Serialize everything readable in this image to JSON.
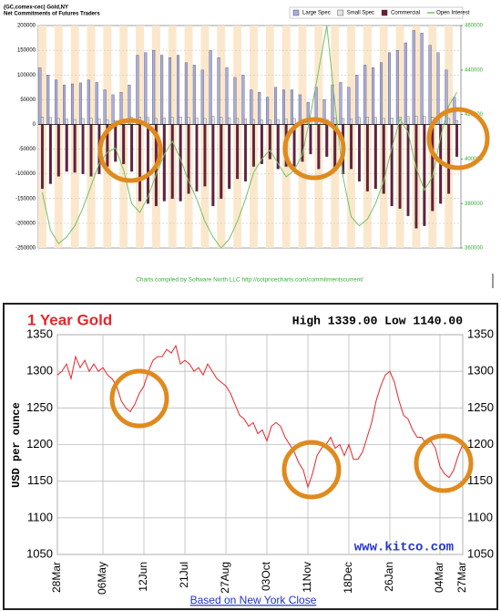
{
  "chart_data": [
    {
      "type": "bar",
      "title": "(GC,comex-cec) Gold,NY",
      "subtitle": "Net Commitments of Futures Traders",
      "source": "Charts compiled by Software North LLC  http://cotpricecharts.com/commitmentscurrent/",
      "categories": [
        null,
        null,
        null,
        null,
        null,
        null,
        null,
        null,
        null,
        null,
        null,
        null,
        null,
        null,
        null,
        null,
        null,
        null,
        null,
        null,
        null,
        null,
        null,
        null,
        null,
        null,
        null,
        null,
        null,
        null,
        null,
        null,
        null,
        null,
        null,
        null,
        null,
        null,
        null,
        null,
        null,
        null,
        null,
        null,
        null,
        null,
        null,
        null,
        null,
        null,
        null,
        null
      ],
      "series": [
        {
          "name": "Large Spec",
          "color": "#a9ace0",
          "values": [
            115000,
            100000,
            90000,
            80000,
            82000,
            84000,
            90000,
            85000,
            70000,
            60000,
            65000,
            80000,
            140000,
            145000,
            150000,
            140000,
            135000,
            140000,
            125000,
            120000,
            110000,
            150000,
            135000,
            115000,
            95000,
            100000,
            70000,
            65000,
            55000,
            75000,
            70000,
            70000,
            60000,
            45000,
            75000,
            50000,
            80000,
            85000,
            75000,
            100000,
            120000,
            115000,
            125000,
            145000,
            150000,
            165000,
            190000,
            185000,
            160000,
            145000,
            110000,
            55000
          ]
        },
        {
          "name": "Small Spec",
          "color": "#e4e4ea",
          "values": [
            15000,
            14000,
            12000,
            11000,
            10000,
            12000,
            13000,
            11000,
            9000,
            8000,
            10000,
            14000,
            15000,
            14000,
            12000,
            13000,
            14000,
            15000,
            14000,
            13000,
            12000,
            16000,
            14000,
            13000,
            12000,
            11000,
            10000,
            9000,
            9000,
            10000,
            11000,
            12000,
            10000,
            9000,
            12000,
            10000,
            13000,
            12000,
            11000,
            14000,
            15000,
            14000,
            12000,
            13000,
            15000,
            16000,
            17000,
            16000,
            15000,
            14000,
            12000,
            8000
          ]
        },
        {
          "name": "Commercial",
          "color": "#6a1d3e",
          "values": [
            -130000,
            -120000,
            -105000,
            -95000,
            -97000,
            -100000,
            -105000,
            -100000,
            -85000,
            -75000,
            -80000,
            -95000,
            -155000,
            -160000,
            -165000,
            -155000,
            -150000,
            -155000,
            -140000,
            -135000,
            -125000,
            -165000,
            -150000,
            -130000,
            -110000,
            -115000,
            -85000,
            -80000,
            -70000,
            -90000,
            -85000,
            -85000,
            -75000,
            -60000,
            -90000,
            -65000,
            -95000,
            -100000,
            -90000,
            -115000,
            -135000,
            -130000,
            -140000,
            -165000,
            -170000,
            -185000,
            -210000,
            -205000,
            -175000,
            -160000,
            -140000,
            -65000
          ]
        },
        {
          "name": "Open Interest",
          "color": "#74c267",
          "type": "line",
          "axis": "y2",
          "values": [
            385000,
            368000,
            362000,
            365000,
            370000,
            378000,
            388000,
            398000,
            403000,
            405000,
            395000,
            380000,
            376000,
            383000,
            393000,
            402000,
            408000,
            400000,
            390000,
            382000,
            372000,
            365000,
            360000,
            364000,
            372000,
            382000,
            394000,
            400000,
            404000,
            398000,
            392000,
            395000,
            402000,
            420000,
            440000,
            460000,
            425000,
            392000,
            374000,
            370000,
            373000,
            380000,
            390000,
            405000,
            418000,
            412000,
            396000,
            386000,
            392000,
            410000,
            424000,
            430000
          ]
        }
      ],
      "ylim": [
        -250000,
        200000
      ],
      "yticks": [
        -250000,
        -200000,
        -150000,
        -100000,
        -50000,
        0,
        50000,
        100000,
        150000,
        200000
      ],
      "y2lim": [
        360000,
        460000
      ],
      "y2ticks": [
        360000,
        380000,
        400000,
        420000,
        440000,
        460000
      ],
      "grid": true
    },
    {
      "type": "line",
      "title": "1 Year Gold",
      "stats": "High 1339.00 Low 1140.00",
      "y_label": "USD per ounce",
      "watermark": "www.kitco.com",
      "note": "Based on New York Close",
      "categories": [
        "28Mar",
        null,
        null,
        null,
        null,
        null,
        null,
        null,
        null,
        null,
        "06May",
        null,
        null,
        null,
        null,
        null,
        null,
        null,
        null,
        "12Jun",
        null,
        null,
        null,
        null,
        null,
        null,
        null,
        null,
        "21Jul",
        null,
        null,
        null,
        null,
        null,
        null,
        null,
        null,
        "27Aug",
        null,
        null,
        null,
        null,
        null,
        null,
        null,
        null,
        "03Oct",
        null,
        null,
        null,
        null,
        null,
        null,
        null,
        null,
        "11Nov",
        null,
        null,
        null,
        null,
        null,
        null,
        null,
        null,
        "18Dec",
        null,
        null,
        null,
        null,
        null,
        null,
        null,
        null,
        "26Jan",
        null,
        null,
        null,
        null,
        null,
        null,
        null,
        null,
        null,
        null,
        "04Mar",
        null,
        null,
        null,
        null,
        "27Mar"
      ],
      "series": [
        {
          "name": null,
          "color": "#e8252a",
          "values": [
            1295,
            1300,
            1310,
            1290,
            1320,
            1305,
            1315,
            1300,
            1310,
            1300,
            1305,
            1295,
            1290,
            1280,
            1260,
            1250,
            1245,
            1255,
            1270,
            1280,
            1300,
            1315,
            1320,
            1320,
            1330,
            1325,
            1335,
            1310,
            1315,
            1310,
            1300,
            1305,
            1295,
            1310,
            1300,
            1290,
            1285,
            1280,
            1270,
            1255,
            1240,
            1235,
            1225,
            1230,
            1215,
            1220,
            1205,
            1225,
            1230,
            1225,
            1210,
            1200,
            1190,
            1175,
            1165,
            1142,
            1160,
            1185,
            1195,
            1200,
            1210,
            1195,
            1200,
            1185,
            1200,
            1180,
            1180,
            1190,
            1210,
            1230,
            1260,
            1280,
            1295,
            1300,
            1285,
            1260,
            1240,
            1235,
            1220,
            1210,
            1210,
            1200,
            1205,
            1195,
            1170,
            1160,
            1155,
            1165,
            1185,
            1200
          ]
        }
      ],
      "ylim": [
        1050,
        1350
      ],
      "yticks": [
        1050,
        1100,
        1150,
        1200,
        1250,
        1300,
        1350
      ],
      "grid": true
    }
  ]
}
